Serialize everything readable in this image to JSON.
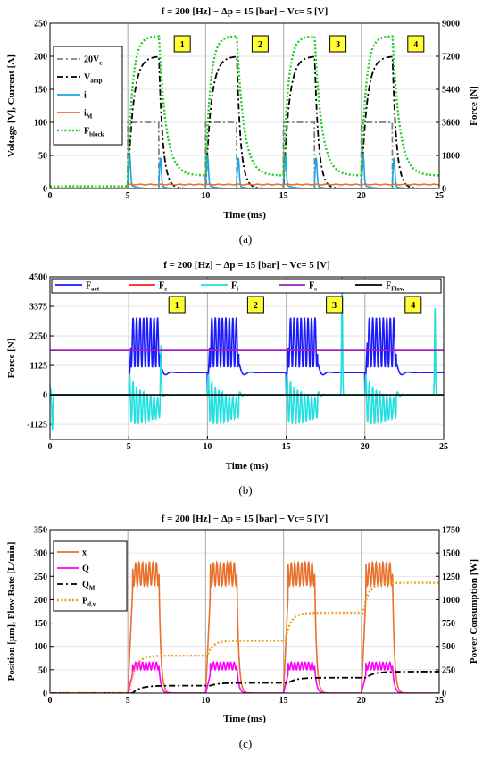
{
  "chart_data": [
    {
      "type": "line",
      "caption": "(a)",
      "title": "f = 200 [Hz] − Δp = 15 [bar] − Vc= 5 [V]",
      "xlabel": "Time (ms)",
      "ylabel": "Voltage [V], Current [A]",
      "y2label": "Force [N]",
      "xlim": [
        0,
        25
      ],
      "ylim": [
        0,
        250
      ],
      "y2lim": [
        0,
        9000
      ],
      "xticks": [
        "0",
        "5",
        "10",
        "15",
        "20",
        "25"
      ],
      "yticks": [
        "0",
        "50",
        "100",
        "150",
        "200",
        "250"
      ],
      "y2ticks": [
        "0",
        "1800",
        "3600",
        "5400",
        "7200",
        "9000"
      ],
      "grid": true,
      "legend_position": "top-left",
      "cycle_starts": [
        5,
        10,
        15,
        20
      ],
      "cycle_labels": [
        "1",
        "2",
        "3",
        "4"
      ],
      "series": [
        {
          "name": "20V",
          "name_sub": "c",
          "axis": "left",
          "color": "#808080",
          "dash": "dash-dot",
          "pattern": {
            "on_value": 100,
            "off_value": 0,
            "on_duration_ms": 2.0
          }
        },
        {
          "name": "V",
          "name_sub": "amp",
          "axis": "left",
          "color": "#000000",
          "dash": "dash-dot",
          "pattern": {
            "peak": 200,
            "rise_tau_ms": 0.35,
            "on_duration_ms": 2.0,
            "fall_tau_ms": 0.25
          }
        },
        {
          "name": "i",
          "name_sub": "",
          "axis": "left",
          "color": "#1fa2e0",
          "dash": "solid",
          "pattern": {
            "spike_peaks": [
              45,
              42
            ],
            "baseline": 0
          }
        },
        {
          "name": "i",
          "name_sub": "M",
          "axis": "left",
          "color": "#e8702a",
          "dash": "solid",
          "pattern": {
            "level": 6,
            "start_ms": 5
          }
        },
        {
          "name": "F",
          "name_sub": "block",
          "axis": "right",
          "color": "#22cc22",
          "dash": "dot",
          "pattern": {
            "peak": 8300,
            "base": 700,
            "rise_tau_ms": 0.3,
            "on_duration_ms": 2.0,
            "fall_tau_ms": 0.45
          }
        }
      ]
    },
    {
      "type": "line",
      "caption": "(b)",
      "title": "f = 200 [Hz] − Δp = 15 [bar] − Vc= 5 [V]",
      "xlabel": "Time (ms)",
      "ylabel": "Force [N]",
      "xlim": [
        0,
        25
      ],
      "ylim": [
        -1700,
        4500
      ],
      "xticks": [
        "0",
        "5",
        "10",
        "15",
        "20",
        "25"
      ],
      "yticks": [
        "-1125",
        "0",
        "1125",
        "2250",
        "3375",
        "4500"
      ],
      "grid": true,
      "legend_position": "top",
      "cycle_starts": [
        5,
        10,
        15,
        20
      ],
      "cycle_labels": [
        "1",
        "2",
        "3",
        "4"
      ],
      "series": [
        {
          "name": "F",
          "name_sub": "act",
          "color": "#1a1aff",
          "pattern": {
            "oscillation_center": 2000,
            "oscillation_amplitude": 950,
            "oscillation_freq_khz": 4.5,
            "plateau": 850
          }
        },
        {
          "name": "F",
          "name_sub": "c",
          "color": "#ff2020",
          "pattern": {
            "level": 1700
          }
        },
        {
          "name": "F",
          "name_sub": "i",
          "color": "#22e0e0",
          "pattern": {
            "oscillation_center": -500,
            "oscillation_amplitude": 900,
            "oscillation_freq_khz": 4.5,
            "spike_peaks": [
              1800,
              4500,
              3300
            ]
          }
        },
        {
          "name": "F",
          "name_sub": "s",
          "color": "#a020c0",
          "pattern": {
            "level": 1700
          }
        },
        {
          "name": "F",
          "name_sub": "Flow",
          "color": "#000000",
          "pattern": {
            "level": 0
          }
        }
      ]
    },
    {
      "type": "line",
      "caption": "(c)",
      "title": "f = 200 [Hz] − Δp = 15 [bar] − Vc= 5 [V]",
      "xlabel": "Time (ms)",
      "ylabel": "Position [µm], Flow Rate [L/min]",
      "y2label": "Power Consumption [W]",
      "xlim": [
        0,
        25
      ],
      "ylim": [
        0,
        350
      ],
      "y2lim": [
        0,
        1750
      ],
      "xticks": [
        "0",
        "5",
        "10",
        "15",
        "20",
        "25"
      ],
      "yticks": [
        "0",
        "50",
        "100",
        "150",
        "200",
        "250",
        "300",
        "350"
      ],
      "y2ticks": [
        "0",
        "250",
        "500",
        "750",
        "1000",
        "1250",
        "1500",
        "1750"
      ],
      "grid": true,
      "legend_position": "top-left",
      "cycle_starts": [
        5,
        10,
        15,
        20
      ],
      "series": [
        {
          "name": "x",
          "name_sub": "",
          "axis": "left",
          "color": "#e8702a",
          "dash": "solid",
          "pattern": {
            "oscillation_center": 255,
            "oscillation_amplitude": 25,
            "oscillation_freq_khz": 4.5,
            "on_duration_ms": 2.0
          }
        },
        {
          "name": "Q",
          "name_sub": "",
          "axis": "left",
          "color": "#ff00ff",
          "dash": "solid",
          "pattern": {
            "oscillation_center": 58,
            "oscillation_amplitude": 8,
            "oscillation_freq_khz": 4.5,
            "on_duration_ms": 2.0
          }
        },
        {
          "name": "Q",
          "name_sub": "M",
          "axis": "left",
          "color": "#000000",
          "dash": "dash-dot",
          "pattern": {
            "steps": [
              0,
              16,
              22,
              33,
              46
            ]
          }
        },
        {
          "name": "P",
          "name_sub": "d,v",
          "axis": "right",
          "color": "#f0a020",
          "dash": "dot",
          "pattern": {
            "steps": [
              0,
              400,
              560,
              860,
              1180
            ]
          }
        }
      ]
    }
  ]
}
